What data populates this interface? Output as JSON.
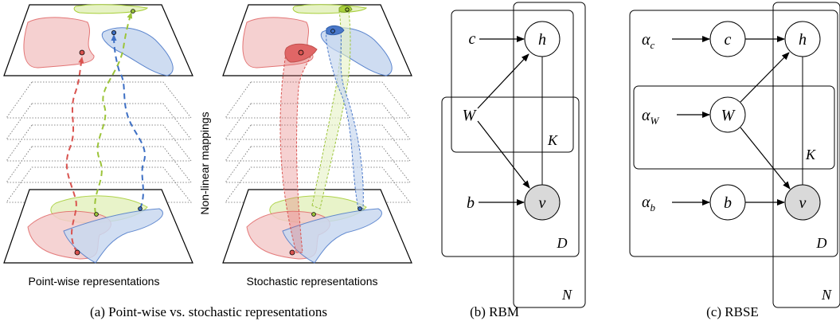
{
  "panel_a": {
    "left_subtitle": "Point-wise representations",
    "right_subtitle": "Stochastic representations",
    "side_label": "Non-linear mappings",
    "caption": "(a) Point-wise vs. stochastic representations"
  },
  "panel_b": {
    "caption": "(b) RBM",
    "nodes": {
      "c": "c",
      "h": "h",
      "W": "W",
      "b": "b",
      "v": "v"
    },
    "plates": {
      "K": "K",
      "D": "D",
      "N": "N"
    }
  },
  "panel_c": {
    "caption": "(c) RBSE",
    "nodes": {
      "alpha_c": "α",
      "alpha_c_sub": "c",
      "c": "c",
      "h": "h",
      "alpha_W": "α",
      "alpha_W_sub": "W",
      "W": "W",
      "alpha_b": "α",
      "alpha_b_sub": "b",
      "b": "b",
      "v": "v"
    },
    "plates": {
      "K": "K",
      "D": "D",
      "N": "N"
    }
  },
  "colors": {
    "red": "#e06666",
    "red_fill": "#f4cccc",
    "blue": "#4a78c9",
    "blue_fill": "#c9d9f0",
    "green": "#a8cf3a",
    "green_fill": "#e6f2c4",
    "observed": "#d9d9d9"
  }
}
